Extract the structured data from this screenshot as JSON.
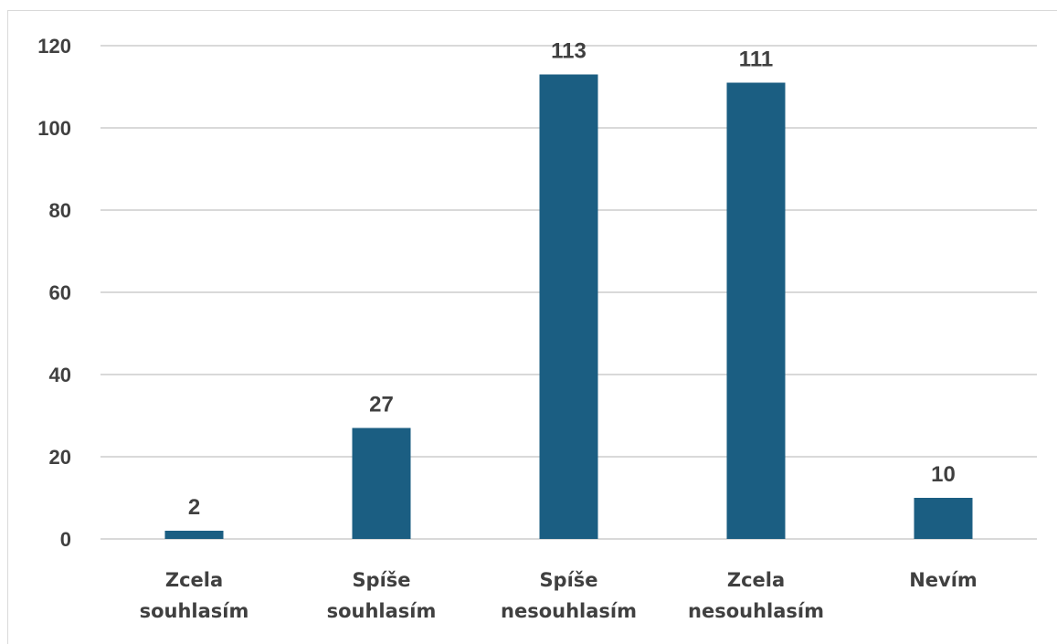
{
  "chart_data": {
    "type": "bar",
    "categories": [
      [
        "Zcela",
        "souhlasím"
      ],
      [
        "Spíše",
        "souhlasím"
      ],
      [
        "Spíše",
        "nesouhlasím"
      ],
      [
        "Zcela",
        "nesouhlasím"
      ],
      [
        "Nevím"
      ]
    ],
    "values": [
      2,
      27,
      113,
      111,
      10
    ],
    "data_labels": [
      "2",
      "27",
      "113",
      "111",
      "10"
    ],
    "ylim": [
      0,
      120
    ],
    "yticks": [
      "0",
      "20",
      "40",
      "60",
      "80",
      "100",
      "120"
    ],
    "bar_color": "#1b5e82",
    "grid_color": "#d9d9d9",
    "grid": true,
    "legend": false
  }
}
